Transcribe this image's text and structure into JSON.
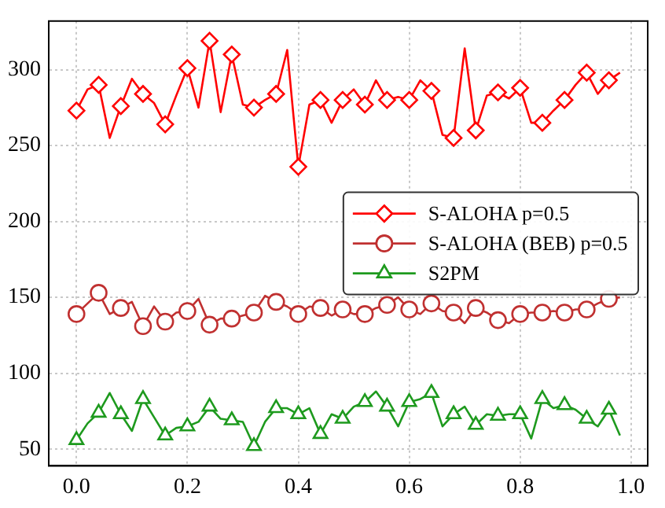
{
  "chart_data": {
    "type": "line",
    "x": [
      0,
      0.02,
      0.04,
      0.06,
      0.08,
      0.1,
      0.12,
      0.14,
      0.16,
      0.18,
      0.2,
      0.22,
      0.24,
      0.26,
      0.28,
      0.3,
      0.32,
      0.34,
      0.36,
      0.38,
      0.4,
      0.42,
      0.44,
      0.46,
      0.48,
      0.5,
      0.52,
      0.54,
      0.56,
      0.58,
      0.6,
      0.62,
      0.64,
      0.66,
      0.68,
      0.7,
      0.72,
      0.74,
      0.76,
      0.78,
      0.8,
      0.82,
      0.84,
      0.86,
      0.88,
      0.9,
      0.92,
      0.94,
      0.96,
      0.98
    ],
    "series": [
      {
        "name": "S-ALOHA p=0.5",
        "color": "#ff0000",
        "marker": "diamond",
        "values": [
          273,
          287,
          290,
          255,
          276,
          294,
          284,
          278,
          264,
          283,
          301,
          275,
          319,
          272,
          310,
          277,
          275,
          280,
          284,
          313,
          236,
          277,
          280,
          265,
          280,
          287,
          277,
          293,
          280,
          282,
          280,
          293,
          286,
          257,
          255,
          314,
          260,
          283,
          285,
          281,
          288,
          265,
          265,
          273,
          280,
          290,
          298,
          284,
          293,
          298
        ]
      },
      {
        "name": "S-ALOHA (BEB) p=0.5",
        "color": "#c03030",
        "marker": "circle",
        "values": [
          139,
          146,
          153,
          139,
          143,
          147,
          131,
          144,
          134,
          140,
          141,
          149,
          132,
          136,
          136,
          138,
          140,
          151,
          147,
          144,
          139,
          144,
          143,
          138,
          142,
          139,
          139,
          143,
          145,
          150,
          142,
          139,
          146,
          141,
          140,
          133,
          143,
          140,
          135,
          133,
          139,
          140,
          140,
          141,
          140,
          142,
          142,
          146,
          149,
          150
        ]
      },
      {
        "name": "S2PM",
        "color": "#1e9a1e",
        "marker": "triangle",
        "values": [
          56,
          67,
          74,
          87,
          73,
          62,
          83,
          71,
          59,
          64,
          65,
          68,
          78,
          70,
          69,
          68,
          52,
          68,
          77,
          77,
          73,
          77,
          60,
          73,
          70,
          78,
          81,
          88,
          78,
          65,
          81,
          83,
          87,
          65,
          73,
          78,
          66,
          73,
          72,
          73,
          73,
          57,
          83,
          77,
          79,
          76,
          70,
          65,
          76,
          59
        ]
      }
    ],
    "xlim": [
      -0.05,
      1.03
    ],
    "xticks": [
      {
        "value": 0,
        "label": "0.0"
      },
      {
        "value": 0.2,
        "label": "0.2"
      },
      {
        "value": 0.4,
        "label": "0.4"
      },
      {
        "value": 0.6,
        "label": "0.6"
      },
      {
        "value": 0.8,
        "label": "0.8"
      },
      {
        "value": 1,
        "label": "1.0"
      }
    ],
    "ylim": [
      39,
      332
    ],
    "yticks": [
      50,
      100,
      150,
      200,
      250,
      300
    ],
    "grid": true,
    "legend": "center right",
    "line_style": "solid"
  }
}
